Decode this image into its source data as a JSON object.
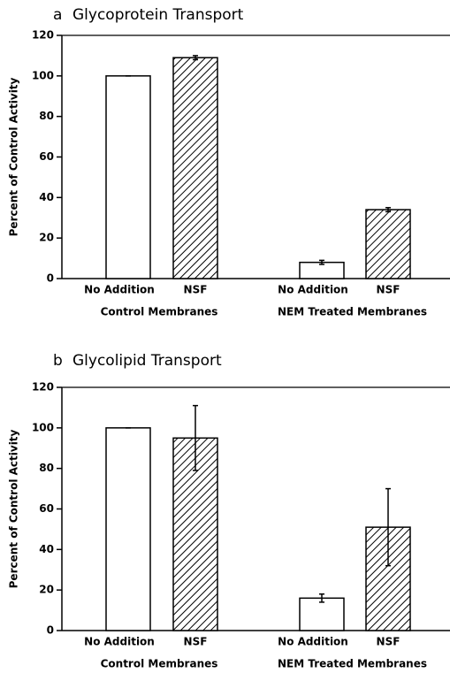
{
  "chart_data": [
    {
      "type": "bar",
      "panel_label": "a",
      "title": "Glycoprotein Transport",
      "ylabel": "Percent of Control Activity",
      "categories": [
        "No Addition",
        "NSF",
        "No Addition",
        "NSF"
      ],
      "groups": [
        "Control Membranes",
        "NEM Treated Membranes"
      ],
      "values": [
        100,
        109,
        8,
        34
      ],
      "errors": [
        0,
        1,
        1,
        1
      ],
      "fills": [
        "plain",
        "hatch",
        "plain",
        "hatch"
      ],
      "ylim": [
        0,
        120
      ],
      "yticks": [
        0,
        20,
        40,
        60,
        80,
        100,
        120
      ]
    },
    {
      "type": "bar",
      "panel_label": "b",
      "title": "Glycolipid Transport",
      "ylabel": "Percent of Control Activity",
      "categories": [
        "No Addition",
        "NSF",
        "No Addition",
        "NSF"
      ],
      "groups": [
        "Control Membranes",
        "NEM Treated Membranes"
      ],
      "values": [
        100,
        95,
        16,
        51
      ],
      "errors": [
        0,
        16,
        2,
        19
      ],
      "fills": [
        "plain",
        "hatch",
        "plain",
        "hatch"
      ],
      "ylim": [
        0,
        120
      ],
      "yticks": [
        0,
        20,
        40,
        60,
        80,
        100,
        120
      ]
    }
  ]
}
